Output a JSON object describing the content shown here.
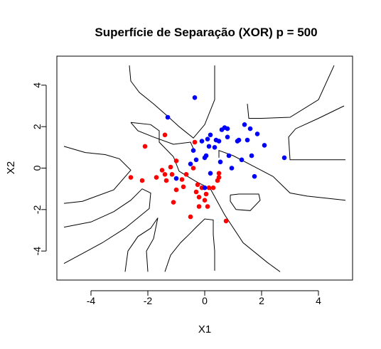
{
  "chart_data": {
    "type": "scatter",
    "title": "Superfície de Separação (XOR) p = 500",
    "xlabel": "X1",
    "ylabel": "X2",
    "xlim": [
      -5.2,
      5.2
    ],
    "ylim": [
      -5.4,
      5.4
    ],
    "xticks": [
      -4,
      -2,
      0,
      2,
      4
    ],
    "yticks": [
      -4,
      -2,
      0,
      2,
      4
    ],
    "grid": false,
    "colors": {
      "class_a": "#ff0000",
      "class_b": "#0000ff",
      "contour": "#000000"
    },
    "series": [
      {
        "class": "class_a",
        "points": [
          [
            -2.6,
            -0.45
          ],
          [
            -2.2,
            -0.6
          ],
          [
            -2.1,
            1.05
          ],
          [
            -1.4,
            1.6
          ],
          [
            -1.7,
            -0.45
          ],
          [
            -1.5,
            -0.1
          ],
          [
            -1.4,
            -0.3
          ],
          [
            -1.35,
            -0.6
          ],
          [
            -1.2,
            0.05
          ],
          [
            -1.15,
            -0.3
          ],
          [
            -1.1,
            -1.65
          ],
          [
            -1.0,
            0.35
          ],
          [
            -1.0,
            -1.05
          ],
          [
            -0.8,
            -0.55
          ],
          [
            -0.75,
            -0.9
          ],
          [
            -0.65,
            -0.3
          ],
          [
            -0.5,
            -2.35
          ],
          [
            -0.4,
            0.0
          ],
          [
            -0.35,
            1.25
          ],
          [
            -0.3,
            -1.15
          ],
          [
            -0.25,
            -0.8
          ],
          [
            -0.2,
            -1.4
          ],
          [
            -0.2,
            -1.85
          ],
          [
            -0.1,
            -0.95
          ],
          [
            0.0,
            -1.55
          ],
          [
            0.05,
            -1.25
          ],
          [
            0.1,
            -1.85
          ],
          [
            0.15,
            -0.95
          ],
          [
            0.3,
            -0.95
          ],
          [
            0.45,
            -0.6
          ],
          [
            0.5,
            -0.25
          ],
          [
            0.5,
            -0.45
          ],
          [
            0.75,
            -2.55
          ]
        ]
      },
      {
        "class": "class_b",
        "points": [
          [
            -1.3,
            2.45
          ],
          [
            -1.0,
            -0.5
          ],
          [
            -0.5,
            0.2
          ],
          [
            -0.4,
            0.85
          ],
          [
            -0.35,
            3.4
          ],
          [
            -0.3,
            0.4
          ],
          [
            -0.1,
            1.3
          ],
          [
            0.0,
            0.5
          ],
          [
            0.0,
            -0.95
          ],
          [
            0.05,
            0.6
          ],
          [
            0.1,
            1.4
          ],
          [
            0.15,
            1.05
          ],
          [
            0.2,
            1.6
          ],
          [
            0.2,
            -0.25
          ],
          [
            0.35,
            1.0
          ],
          [
            0.4,
            1.35
          ],
          [
            0.5,
            1.3
          ],
          [
            0.55,
            0.3
          ],
          [
            0.6,
            1.85
          ],
          [
            0.7,
            1.95
          ],
          [
            0.8,
            1.9
          ],
          [
            0.8,
            1.5
          ],
          [
            0.85,
            0.6
          ],
          [
            0.95,
            0.0
          ],
          [
            1.15,
            1.3
          ],
          [
            1.2,
            1.35
          ],
          [
            1.3,
            0.4
          ],
          [
            1.4,
            2.1
          ],
          [
            1.5,
            1.35
          ],
          [
            1.6,
            1.9
          ],
          [
            1.65,
            0.6
          ],
          [
            1.75,
            -0.4
          ],
          [
            1.85,
            1.65
          ],
          [
            2.1,
            1.1
          ],
          [
            2.8,
            0.5
          ]
        ]
      }
    ],
    "contour_lines": [
      [
        [
          -4.95,
          1.05
        ],
        [
          -4.2,
          0.75
        ],
        [
          -3.5,
          0.65
        ],
        [
          -3.0,
          0.45
        ],
        [
          -2.6,
          -0.1
        ],
        [
          -3.2,
          -1.05
        ],
        [
          -4.3,
          -1.6
        ],
        [
          -4.95,
          -1.7
        ]
      ],
      [
        [
          -4.95,
          -2.85
        ],
        [
          -4.0,
          -2.6
        ],
        [
          -3.2,
          -2.1
        ],
        [
          -2.6,
          -1.55
        ],
        [
          -2.2,
          -1.0
        ],
        [
          -1.9,
          -1.2
        ],
        [
          -1.95,
          -1.95
        ],
        [
          -2.8,
          -2.9
        ],
        [
          -3.6,
          -3.6
        ],
        [
          -4.95,
          -4.6
        ]
      ],
      [
        [
          -2.8,
          -5.0
        ],
        [
          -2.7,
          -4.0
        ],
        [
          -2.35,
          -3.3
        ],
        [
          -1.9,
          -2.9
        ],
        [
          -1.65,
          -2.4
        ],
        [
          -1.8,
          -3.4
        ],
        [
          -2.05,
          -4.0
        ],
        [
          -2.0,
          -5.0
        ]
      ],
      [
        [
          -2.65,
          4.95
        ],
        [
          -2.6,
          4.2
        ],
        [
          -2.3,
          3.65
        ],
        [
          -1.8,
          3.1
        ],
        [
          -1.3,
          2.5
        ],
        [
          -0.9,
          2.0
        ],
        [
          -0.4,
          1.45
        ],
        [
          0.0,
          2.1
        ],
        [
          0.35,
          3.3
        ],
        [
          0.35,
          4.95
        ]
      ],
      [
        [
          0.35,
          -4.95
        ],
        [
          0.35,
          -4.0
        ],
        [
          0.3,
          -3.2
        ],
        [
          0.3,
          -2.5
        ],
        [
          0.0,
          -2.45
        ],
        [
          -0.3,
          -2.85
        ],
        [
          -0.55,
          -3.2
        ],
        [
          -0.85,
          -3.6
        ],
        [
          -1.2,
          -4.2
        ],
        [
          -1.4,
          -5.0
        ]
      ],
      [
        [
          -2.6,
          2.2
        ],
        [
          -1.9,
          2.1
        ],
        [
          -1.6,
          1.8
        ],
        [
          -1.6,
          1.25
        ],
        [
          -1.1,
          0.55
        ],
        [
          -0.9,
          -0.15
        ],
        [
          -0.3,
          -0.65
        ],
        [
          0.2,
          -1.0
        ],
        [
          0.7,
          -2.25
        ],
        [
          1.35,
          -3.6
        ],
        [
          2.2,
          -4.55
        ],
        [
          2.65,
          -5.0
        ]
      ],
      [
        [
          -2.6,
          2.2
        ],
        [
          -2.35,
          1.8
        ],
        [
          -1.8,
          1.5
        ],
        [
          -1.1,
          1.15
        ],
        [
          -0.5,
          1.25
        ],
        [
          -0.4,
          0.95
        ]
      ],
      [
        [
          1.5,
          3.1
        ],
        [
          1.55,
          2.4
        ],
        [
          2.0,
          2.4
        ],
        [
          3.0,
          2.45
        ],
        [
          4.0,
          3.3
        ],
        [
          4.55,
          4.95
        ]
      ],
      [
        [
          4.9,
          3.0
        ],
        [
          4.0,
          2.4
        ],
        [
          3.2,
          1.9
        ],
        [
          2.95,
          1.5
        ],
        [
          3.0,
          0.4
        ],
        [
          4.95,
          0.4
        ]
      ],
      [
        [
          4.95,
          -1.55
        ],
        [
          3.6,
          -1.35
        ],
        [
          3.0,
          -1.2
        ],
        [
          2.4,
          -0.4
        ],
        [
          1.7,
          0.1
        ],
        [
          1.0,
          0.6
        ],
        [
          0.5,
          0.85
        ],
        [
          0.5,
          0.5
        ]
      ],
      [
        [
          0.9,
          -1.3
        ],
        [
          1.2,
          -1.25
        ],
        [
          1.9,
          -1.25
        ],
        [
          1.95,
          -1.55
        ],
        [
          1.6,
          -2.05
        ],
        [
          1.1,
          -2.0
        ],
        [
          0.9,
          -1.6
        ],
        [
          0.9,
          -1.3
        ]
      ]
    ]
  }
}
